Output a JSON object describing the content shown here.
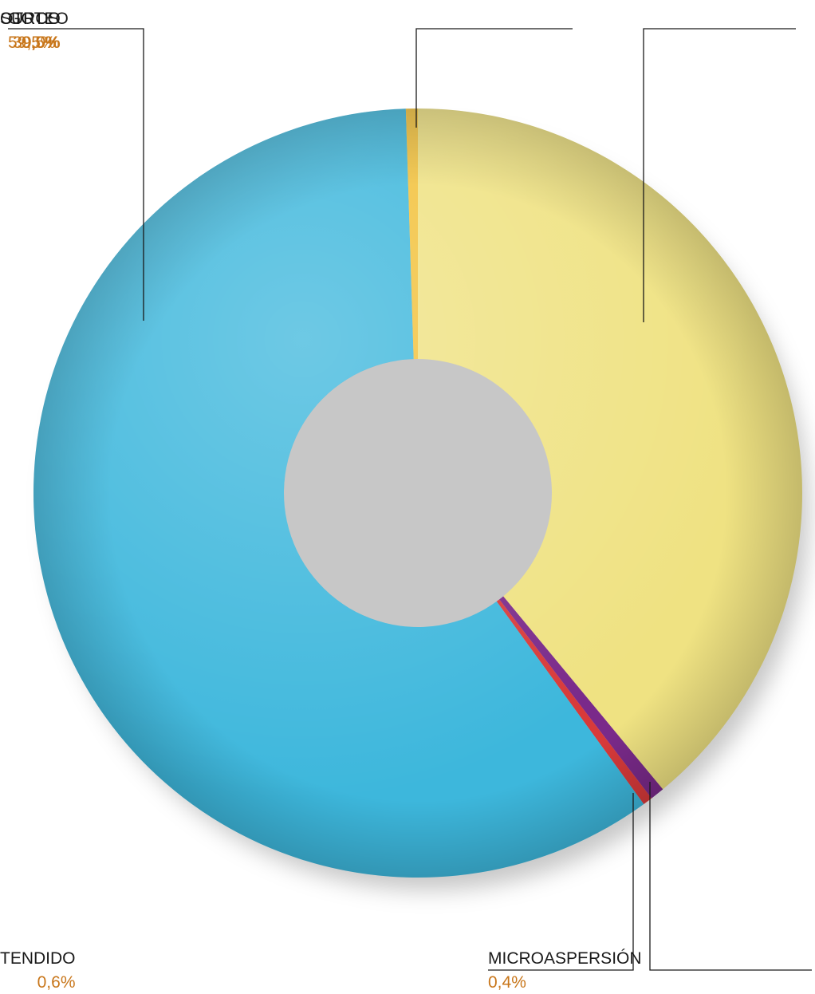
{
  "chart_data": {
    "type": "pie",
    "style": "donut",
    "slices": [
      {
        "label": "GOTEO",
        "value": 59.5,
        "display": "59,5%",
        "color": "#3db7dc"
      },
      {
        "label": "OTROS",
        "value": 0.5,
        "display": "0,5%",
        "color": "#f2c13a"
      },
      {
        "label": "SURCO",
        "value": 39.0,
        "display": "39,0%",
        "color": "#efe282"
      },
      {
        "label": "MICROASPERSIÓN",
        "value": 0.4,
        "display": "0,4%",
        "color": "#d83a3a"
      },
      {
        "label": "TENDIDO",
        "value": 0.6,
        "display": "0,6%",
        "color": "#7a2a8a"
      }
    ],
    "legend": "callouts"
  },
  "colors": {
    "label_text": "#1a1a1a",
    "percent_text": "#c8761a",
    "leader_line": "#1a1a1a"
  }
}
